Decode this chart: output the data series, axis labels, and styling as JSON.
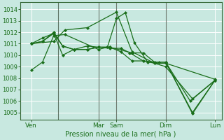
{
  "bg_color": "#c8e8e0",
  "grid_color": "#ffffff",
  "line_color": "#1a6e1a",
  "marker_color": "#1a6e1a",
  "title": "Pression niveau de la mer( hPa )",
  "ylabel_values": [
    1005,
    1006,
    1007,
    1008,
    1009,
    1010,
    1011,
    1012,
    1013,
    1014
  ],
  "xlim": [
    0,
    9.0
  ],
  "ylim": [
    1004.4,
    1014.6
  ],
  "xtick_positions": [
    0.5,
    3.5,
    4.3,
    6.5,
    8.7
  ],
  "xtick_labels": [
    "Ven",
    "Mar",
    "Sam",
    "Dim",
    "Lun"
  ],
  "vline_positions": [
    1.7,
    3.5,
    4.3,
    6.5
  ],
  "series": [
    {
      "x": [
        0.5,
        1.0,
        1.5,
        2.0,
        3.5,
        3.9,
        4.3,
        4.7,
        5.1,
        5.7,
        6.2,
        6.5,
        7.6,
        8.7
      ],
      "y": [
        1008.7,
        1009.4,
        1011.7,
        1011.8,
        1010.5,
        1010.7,
        1013.2,
        1013.7,
        1011.1,
        1009.4,
        1009.4,
        1009.4,
        1006.0,
        1007.8
      ]
    },
    {
      "x": [
        0.5,
        1.0,
        1.5,
        1.9,
        2.4,
        3.0,
        3.5,
        4.0,
        4.5,
        4.9,
        5.5,
        6.0,
        6.5,
        7.7,
        8.7
      ],
      "y": [
        1011.0,
        1011.5,
        1011.9,
        1010.8,
        1010.5,
        1010.5,
        1010.7,
        1010.6,
        1010.6,
        1010.2,
        1009.5,
        1009.4,
        1009.4,
        1004.9,
        1007.8
      ]
    },
    {
      "x": [
        0.5,
        1.0,
        1.5,
        1.9,
        2.4,
        3.0,
        3.5,
        4.0,
        5.0,
        5.5,
        6.0,
        6.5,
        7.7,
        8.7
      ],
      "y": [
        1011.0,
        1011.2,
        1012.0,
        1010.8,
        1010.5,
        1010.5,
        1010.7,
        1010.7,
        1010.2,
        1010.2,
        1009.4,
        1009.4,
        1005.0,
        1007.8
      ]
    },
    {
      "x": [
        0.5,
        1.0,
        1.5,
        1.9,
        2.4,
        3.0,
        3.5,
        4.0,
        4.5,
        5.0,
        5.5,
        6.0,
        6.5,
        8.7
      ],
      "y": [
        1011.0,
        1011.2,
        1011.9,
        1010.0,
        1010.5,
        1010.8,
        1010.7,
        1010.7,
        1010.3,
        1009.5,
        1009.5,
        1009.3,
        1009.3,
        1007.9
      ]
    },
    {
      "x": [
        0.5,
        1.5,
        2.0,
        3.0,
        4.3,
        5.0,
        6.0,
        6.5,
        7.7,
        8.7
      ],
      "y": [
        1011.0,
        1011.2,
        1012.2,
        1012.4,
        1013.75,
        1010.3,
        1009.3,
        1009.0,
        1006.2,
        1007.8
      ]
    }
  ]
}
